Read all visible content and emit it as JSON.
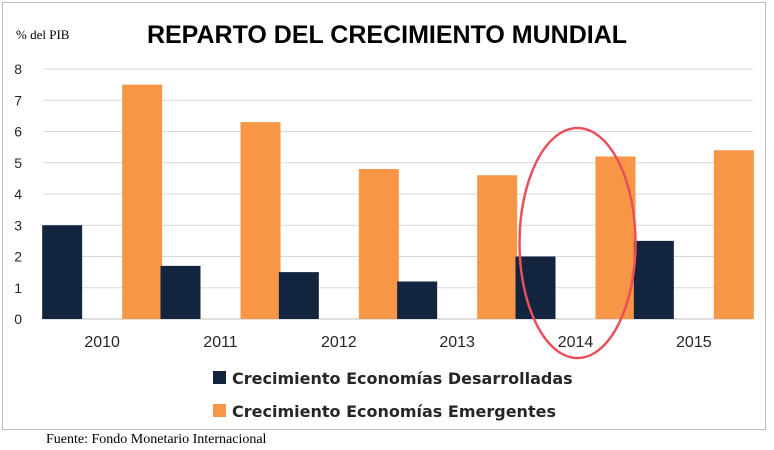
{
  "chart_data": {
    "type": "bar",
    "title": "REPARTO DEL CRECIMIENTO MUNDIAL",
    "ylabel": "% del PIB",
    "xlabel": "",
    "categories": [
      "2010",
      "2011",
      "2012",
      "2013",
      "2014",
      "2015"
    ],
    "series": [
      {
        "name": "Crecimiento Economías Desarrolladas",
        "values": [
          3.0,
          1.7,
          1.5,
          1.2,
          2.0,
          2.5
        ],
        "color": "#13243f"
      },
      {
        "name": "Crecimiento Economías Emergentes",
        "values": [
          7.5,
          6.3,
          4.8,
          4.6,
          5.2,
          5.4
        ],
        "color": "#f79646"
      }
    ],
    "ylim": [
      0,
      8
    ],
    "yticks": [
      "0",
      "1",
      "2",
      "3",
      "4",
      "5",
      "6",
      "7",
      "8"
    ],
    "grid": true,
    "legend": "bottom",
    "highlight": {
      "category": "2014",
      "shape": "ellipse",
      "color": "#e8505b"
    }
  },
  "source_note": "Fuente: Fondo Monetario Internacional"
}
